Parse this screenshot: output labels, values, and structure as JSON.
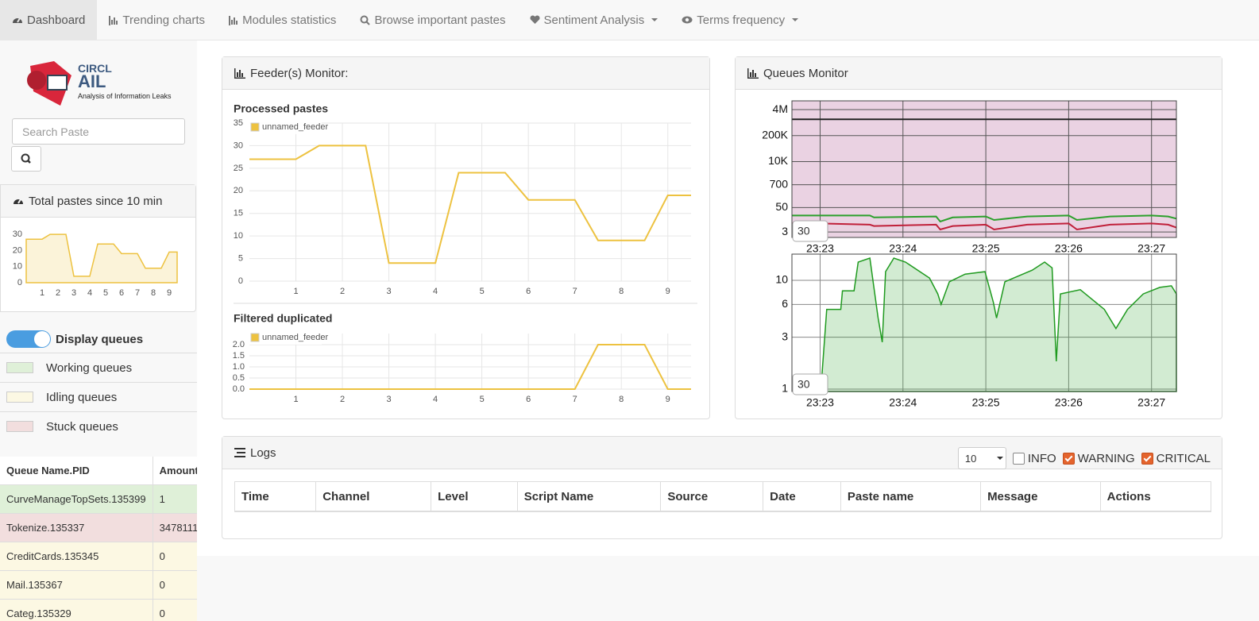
{
  "nav": {
    "items": [
      "Dashboard",
      "Trending charts",
      "Modules statistics",
      "Browse important pastes",
      "Sentiment Analysis",
      "Terms frequency"
    ]
  },
  "sidebar": {
    "logo": {
      "org": "CIRCL",
      "name": "AIL",
      "tagline": "Analysis of Information Leaks"
    },
    "search_placeholder": "Search Paste",
    "total_pastes": {
      "title": "Total pastes since 10 min",
      "chart": {
        "type": "area",
        "x": [
          0,
          1,
          1.5,
          2.5,
          3,
          4,
          4.5,
          5.5,
          6,
          7,
          7.5,
          8.5,
          9,
          9.5
        ],
        "series": [
          {
            "color": "#edc240",
            "values": [
              27,
              27,
              30,
              30,
              4,
              4,
              24,
              24,
              18,
              18,
              9,
              9,
              19,
              19
            ]
          }
        ],
        "xlim": [
          0,
          9.5
        ],
        "ylim": [
          0,
          32
        ],
        "xticks": [
          1,
          2,
          3,
          4,
          5,
          6,
          7,
          8,
          9
        ],
        "yticks": [
          0,
          10,
          20,
          30
        ],
        "grid": false
      }
    },
    "display_queues": "Display queues",
    "legend": [
      {
        "label": "Working queues",
        "color": "#dff0d8"
      },
      {
        "label": "Idling queues",
        "color": "#fcf8e3"
      },
      {
        "label": "Stuck queues",
        "color": "#f2dede"
      }
    ],
    "queue_table": {
      "header": [
        "Queue Name.PID",
        "Amount"
      ],
      "rows": [
        [
          "CurveManageTopSets.135399",
          "1"
        ],
        [
          "Tokenize.135337",
          "3478111"
        ],
        [
          "CreditCards.135345",
          "0"
        ],
        [
          "Mail.135367",
          "0"
        ],
        [
          "Categ.135329",
          "0"
        ]
      ],
      "row_colors": [
        "#dff0d8",
        "#f2dede",
        "#fcf8e3",
        "#fcf8e3",
        "#fcf8e3"
      ]
    }
  },
  "feeder_monitor": {
    "title": "Feeder(s) Monitor:",
    "charts": [
      {
        "type": "line",
        "title": "Processed pastes",
        "x": [
          0,
          1,
          1.5,
          2.5,
          3,
          4,
          4.5,
          5.5,
          6,
          7,
          7.5,
          8.5,
          9,
          9.5
        ],
        "series": [
          {
            "name": "unnamed_feeder",
            "color": "#edc240",
            "values": [
              27,
              27,
              30,
              30,
              4,
              4,
              24,
              24,
              18,
              18,
              9,
              9,
              19,
              19
            ]
          }
        ],
        "xlim": [
          0,
          9.5
        ],
        "ylim": [
          0,
          35
        ],
        "xticks": [
          1,
          2,
          3,
          4,
          5,
          6,
          7,
          8,
          9
        ],
        "yticks": [
          0,
          5,
          10,
          15,
          20,
          25,
          30,
          35
        ],
        "grid": true
      },
      {
        "type": "line",
        "title": "Filtered duplicated",
        "x": [
          0,
          1,
          1.5,
          2.5,
          3,
          4,
          4.5,
          5.5,
          6,
          7,
          7.5,
          8.5,
          9,
          9.5
        ],
        "series": [
          {
            "name": "unnamed_feeder",
            "color": "#edc240",
            "values": [
              0,
              0,
              0,
              0,
              0,
              0,
              0,
              0,
              0,
              0,
              2,
              2,
              0,
              0
            ]
          }
        ],
        "xlim": [
          0,
          9.5
        ],
        "ylim": [
          0,
          2.5
        ],
        "xticks": [
          1,
          2,
          3,
          4,
          5,
          6,
          7,
          8,
          9
        ],
        "yticks": [
          {
            "value": 0,
            "label": "0.0"
          },
          0.5,
          {
            "value": 1,
            "label": "1.0"
          },
          1.5,
          {
            "value": 2,
            "label": "2.0"
          }
        ],
        "grid": true
      }
    ]
  },
  "queues_monitor": {
    "title": "Queues Monitor",
    "charts": [
      {
        "type": "line",
        "log": true,
        "background": "#ead2e2",
        "input": "30",
        "x": [
          22.66,
          23.0,
          23.6,
          23.65,
          24.4,
          24.45,
          24.6,
          25.0,
          25.1,
          25.5,
          26.0,
          26.1,
          26.5,
          27.0,
          27.2,
          27.3
        ],
        "series": [
          {
            "color": "#222222",
            "values": [
              1300000,
              1300000,
              1300000,
              1300000,
              1300000,
              1300000,
              1300000,
              1300000,
              1300000,
              1300000,
              1300000,
              1300000,
              1300000,
              1300000,
              1300000,
              1300000
            ]
          },
          {
            "color": "#2ca02c",
            "values": [
              20,
              20,
              20,
              16,
              18,
              10,
              16,
              18,
              12,
              18,
              20,
              12,
              18,
              20,
              18,
              14
            ]
          },
          {
            "color": "#c0203a",
            "values": [
              8,
              8,
              7,
              6,
              7,
              4,
              6,
              7,
              4,
              7,
              8,
              4,
              7,
              8,
              7,
              5
            ]
          }
        ],
        "xlim": [
          22.66,
          27.3
        ],
        "ylim": [
          1.6,
          11000000
        ],
        "xticks": [
          {
            "value": 23,
            "label": "23:23"
          },
          {
            "value": 24,
            "label": "23:24"
          },
          {
            "value": 25,
            "label": "23:25"
          },
          {
            "value": 26,
            "label": "23:26"
          },
          {
            "value": 27,
            "label": "23:27"
          }
        ],
        "yticks": [
          {
            "value": 3,
            "label": "3"
          },
          50,
          700,
          {
            "value": 10000,
            "label": "10K"
          },
          {
            "value": 200000,
            "label": "200K"
          },
          {
            "value": 4000000,
            "label": "4M"
          }
        ],
        "grid": true
      },
      {
        "type": "area",
        "log": true,
        "input": "30",
        "x": [
          23.01,
          23.08,
          23.25,
          23.27,
          23.41,
          23.46,
          23.6,
          23.7,
          23.75,
          23.79,
          23.89,
          24.03,
          24.32,
          24.42,
          24.46,
          24.56,
          24.75,
          24.99,
          25.09,
          25.13,
          25.23,
          25.56,
          25.71,
          25.8,
          25.85,
          25.9,
          26.14,
          26.43,
          26.57,
          26.71,
          26.9,
          27.1,
          27.24,
          27.3
        ],
        "series": [
          {
            "color": "#1f9a1f",
            "values": [
              1,
              5.4,
              5.4,
              8,
              8,
              14.7,
              16,
              4.5,
              2.7,
              12,
              16,
              14.7,
              10.5,
              7.5,
              6,
              9.7,
              11.4,
              12,
              6.3,
              4.5,
              9.7,
              12.4,
              14.7,
              13,
              1.8,
              7.5,
              8.2,
              5.4,
              3.6,
              5.4,
              7.5,
              8.6,
              8.9,
              7.5
            ]
          }
        ],
        "xlim": [
          22.66,
          27.3
        ],
        "ylim": [
          0.95,
          17.4
        ],
        "xticks": [
          {
            "value": 23,
            "label": "23:23"
          },
          {
            "value": 24,
            "label": "23:24"
          },
          {
            "value": 25,
            "label": "23:25"
          },
          {
            "value": 26,
            "label": "23:26"
          },
          {
            "value": 27,
            "label": "23:27"
          }
        ],
        "yticks": [
          1,
          3,
          6,
          10
        ],
        "grid": true
      }
    ]
  },
  "logs": {
    "title": "Logs",
    "page_size": "10",
    "filters": [
      {
        "label": "INFO",
        "checked": false
      },
      {
        "label": "WARNING",
        "checked": true
      },
      {
        "label": "CRITICAL",
        "checked": true
      }
    ],
    "columns": [
      "Time",
      "Channel",
      "Level",
      "Script Name",
      "Source",
      "Date",
      "Paste name",
      "Message",
      "Actions"
    ]
  }
}
